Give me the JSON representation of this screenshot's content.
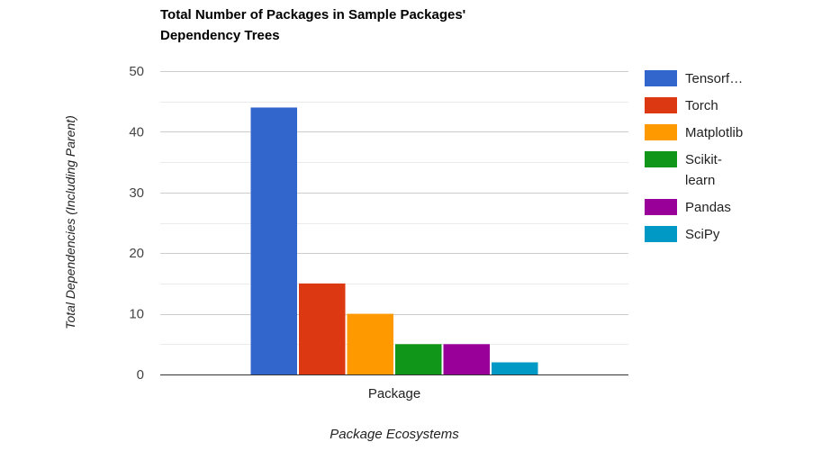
{
  "chart_data": {
    "type": "bar",
    "title_lines": [
      "Total Number of Packages in Sample Packages'",
      "Dependency Trees"
    ],
    "xlabel": "Package Ecosystems",
    "ylabel": "Total Dependencies (Including Parent)",
    "categories": [
      "Package"
    ],
    "ylim": [
      0,
      50
    ],
    "yticks": [
      0,
      10,
      20,
      30,
      40,
      50
    ],
    "grid": true,
    "legend_position": "right",
    "series": [
      {
        "name": "Tensorf…",
        "legend_lines": [
          "Tensorf…"
        ],
        "values": [
          44
        ],
        "color": "#3366cc"
      },
      {
        "name": "Torch",
        "legend_lines": [
          "Torch"
        ],
        "values": [
          15
        ],
        "color": "#dc3912"
      },
      {
        "name": "Matplotlib",
        "legend_lines": [
          "Matplotlib"
        ],
        "values": [
          10
        ],
        "color": "#ff9900"
      },
      {
        "name": "Scikit-learn",
        "legend_lines": [
          "Scikit-",
          "learn"
        ],
        "values": [
          5
        ],
        "color": "#109618"
      },
      {
        "name": "Pandas",
        "legend_lines": [
          "Pandas"
        ],
        "values": [
          5
        ],
        "color": "#990099"
      },
      {
        "name": "SciPy",
        "legend_lines": [
          "SciPy"
        ],
        "values": [
          2
        ],
        "color": "#0099c6"
      }
    ]
  }
}
